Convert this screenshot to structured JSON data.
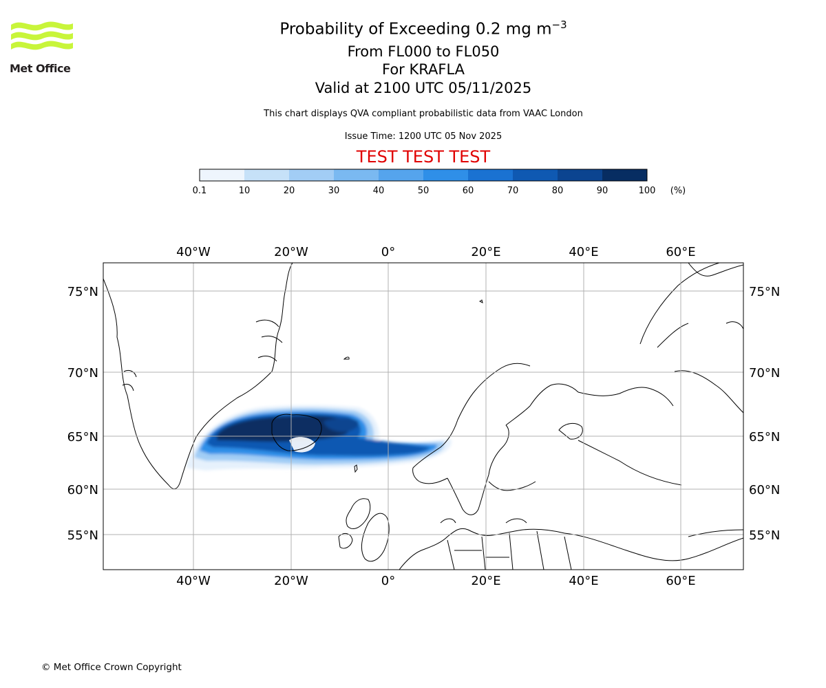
{
  "logo": {
    "text": "Met Office",
    "colors": {
      "waves": "#c8f53a",
      "text": "#231f20"
    }
  },
  "title": {
    "line1": "Probability of Exceeding 0.2 mg m",
    "line1_sup": "−3",
    "line2": "From FL000 to FL050",
    "line3": "For KRAFLA",
    "line4": "Valid at 2100 UTC 05/11/2025"
  },
  "subtitle": "This chart displays QVA compliant probabilistic data from VAAC London",
  "issue_time": "Issue Time: 1200 UTC 05 Nov 2025",
  "test_banner": "TEST TEST TEST",
  "colorbar": {
    "ticks": [
      "0.1",
      "10",
      "20",
      "30",
      "40",
      "50",
      "60",
      "70",
      "80",
      "90",
      "100"
    ],
    "unit": "(%)",
    "colors": [
      "#eef5fd",
      "#c6e1f8",
      "#a2cdf5",
      "#7ab9f1",
      "#55a4ed",
      "#2f8fe8",
      "#1a72d2",
      "#0f59b2",
      "#0b4490",
      "#072d62"
    ]
  },
  "map": {
    "lon_labels": [
      "40°W",
      "20°W",
      "0°",
      "20°E",
      "40°E",
      "60°E"
    ],
    "lat_labels": [
      "75°N",
      "70°N",
      "65°N",
      "60°N",
      "55°N"
    ],
    "colors": {
      "grid": "#b0b0b0",
      "coast": "#000000",
      "frame": "#000000"
    }
  },
  "copyright": "© Met Office Crown Copyright"
}
